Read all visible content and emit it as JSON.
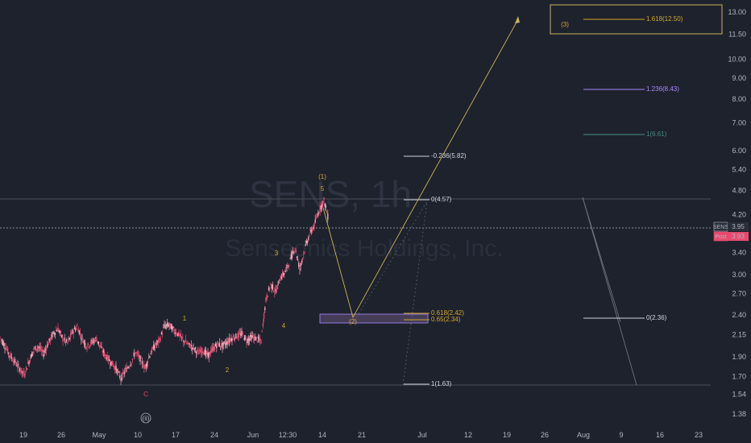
{
  "chart_data": {
    "type": "candlestick",
    "watermark": {
      "symbol": "SENS, 1h",
      "company": "Senseonics Holdings, Inc."
    },
    "x_ticks": [
      "19",
      "26",
      "May",
      "10",
      "17",
      "24",
      "Jun",
      "12:30",
      "14",
      "21",
      "Jul",
      "12",
      "19",
      "26",
      "Aug",
      "9",
      "16",
      "23"
    ],
    "y_ticks": [
      "13.00",
      "11.50",
      "10.00",
      "9.00",
      "8.00",
      "7.00",
      "6.00",
      "5.40",
      "4.80",
      "4.20",
      "3.40",
      "3.00",
      "2.70",
      "2.40",
      "2.15",
      "1.90",
      "1.70",
      "1.54",
      "1.38"
    ],
    "price_labels": [
      {
        "tag": "SENS",
        "value": "3.95",
        "color": "#2a2e39",
        "text_color": "#ffffff"
      },
      {
        "tag": "Post",
        "value": "3.93",
        "color": "#e84a6f",
        "text_color": "#ffffff"
      }
    ],
    "price_series": {
      "start": "Apr 15",
      "end": "Jun 15",
      "values": [
        2.12,
        2.02,
        1.92,
        1.85,
        1.78,
        1.72,
        1.85,
        1.98,
        2.01,
        1.93,
        2.05,
        2.16,
        2.22,
        2.1,
        2.05,
        2.18,
        2.25,
        2.1,
        2.01,
        2.06,
        2.1,
        1.98,
        1.9,
        1.84,
        1.78,
        1.68,
        1.76,
        1.83,
        1.95,
        1.88,
        1.78,
        1.92,
        2.02,
        2.08,
        2.25,
        2.27,
        2.2,
        2.15,
        2.08,
        2.03,
        2.0,
        1.94,
        1.97,
        1.91,
        1.98,
        2.04,
        2.02,
        2.06,
        2.11,
        2.13,
        2.16,
        2.08,
        2.12,
        2.1,
        2.07,
        2.6,
        2.85,
        2.72,
        2.95,
        3.05,
        3.25,
        3.5,
        3.1,
        3.45,
        3.75,
        3.95,
        4.3,
        4.55,
        4.05
      ]
    },
    "waves": [
      {
        "label": "C",
        "color": "#e84a6f"
      },
      {
        "label": "(ii)",
        "color": "#b2b5be"
      },
      {
        "label": "1",
        "color": "#d4a72c"
      },
      {
        "label": "2",
        "color": "#d4a72c"
      },
      {
        "label": "3",
        "color": "#d4a72c"
      },
      {
        "label": "4",
        "color": "#d4a72c"
      },
      {
        "label": "5",
        "color": "#d4a72c"
      },
      {
        "label": "(1)",
        "color": "#d4a72c"
      },
      {
        "label": "(2)",
        "color": "#d4a72c"
      },
      {
        "label": "(3)",
        "color": "#d4a72c"
      }
    ],
    "fib_levels": [
      {
        "label": "1.618(12.50)",
        "value": 12.5,
        "color": "#d4a72c"
      },
      {
        "label": "1.236(8.43)",
        "value": 8.43,
        "color": "#a78bfa"
      },
      {
        "label": "1(6.61)",
        "value": 6.61,
        "color": "#4a8c85"
      },
      {
        "label": "-0.236(5.82)",
        "value": 5.82,
        "color": "#d1d4dc"
      },
      {
        "label": "0(4.57)",
        "value": 4.57,
        "color": "#d1d4dc"
      },
      {
        "label": "0.618(2.42)",
        "value": 2.42,
        "color": "#d4a72c"
      },
      {
        "label": "0.65(2.34)",
        "value": 2.34,
        "color": "#d4a72c"
      },
      {
        "label": "0(2.36)",
        "value": 2.36,
        "color": "#d1d4dc"
      },
      {
        "label": "1(1.63)",
        "value": 1.63,
        "color": "#d1d4dc"
      }
    ],
    "colors": {
      "background": "#1e222d",
      "up": "#e84a6f",
      "down": "#e84a6f",
      "projection": "#c9b458",
      "grid": "#2a2e39"
    }
  }
}
